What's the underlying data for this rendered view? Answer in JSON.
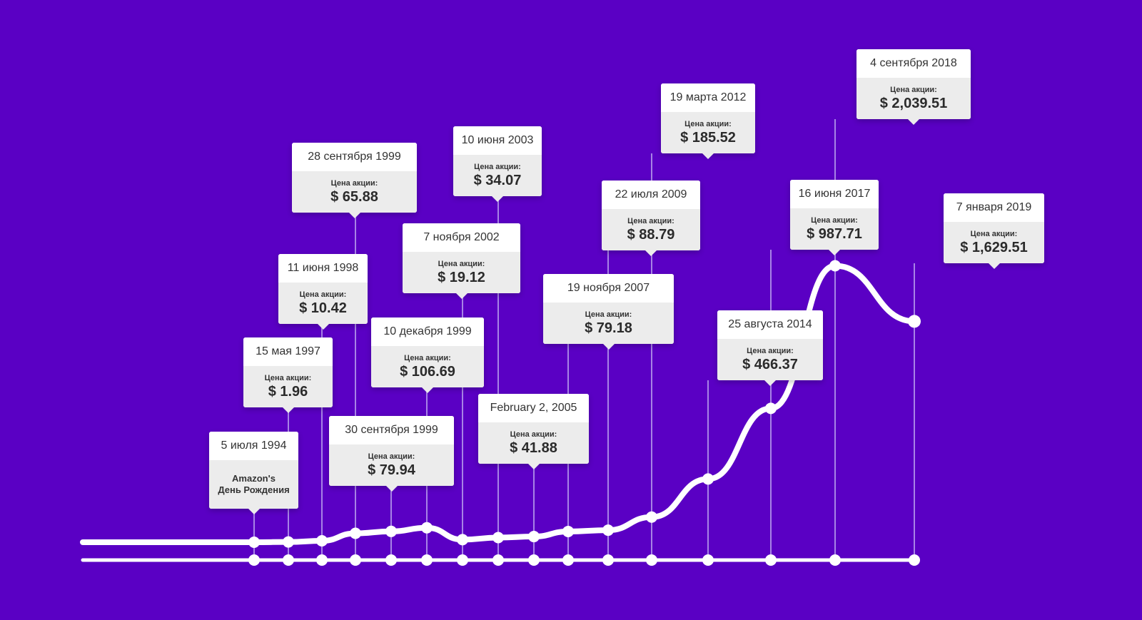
{
  "chart_data": {
    "type": "line",
    "x": [
      "5 июля 1994",
      "15 мая 1997",
      "11 июня 1998",
      "28 сентября 1999",
      "30 сентября 1999",
      "10 декабря 1999",
      "7 ноября 2002",
      "10 июня 2003",
      "February 2, 2005",
      "19 ноября 2007",
      "22 июля 2009",
      "19 марта 2012",
      "25 августа 2014",
      "16 июня 2017",
      "4 сентября 2018",
      "7 января 2019"
    ],
    "series": [
      {
        "values": [
          null,
          1.96,
          10.42,
          65.88,
          79.94,
          106.69,
          19.12,
          34.07,
          41.88,
          79.18,
          88.79,
          185.52,
          466.37,
          987.71,
          2039.51,
          1629.51
        ]
      }
    ],
    "price_label": "Цена акции:",
    "currency": "$",
    "formatted_prices": [
      "",
      "1.96",
      "10.42",
      "65.88",
      "79.94",
      "106.69",
      "19.12",
      "34.07",
      "41.88",
      "79.18",
      "88.79",
      "185.52",
      "466.37",
      "987.71",
      "2,039.51",
      "1,629.51"
    ],
    "first_note": [
      "Amazon's",
      "День Рождения"
    ],
    "colors": {
      "background": "#5a00c4",
      "line": "#ffffff",
      "stem": "#a883e6",
      "callout_header": "#ffffff",
      "callout_body": "#ececec",
      "text": "#333333"
    }
  }
}
